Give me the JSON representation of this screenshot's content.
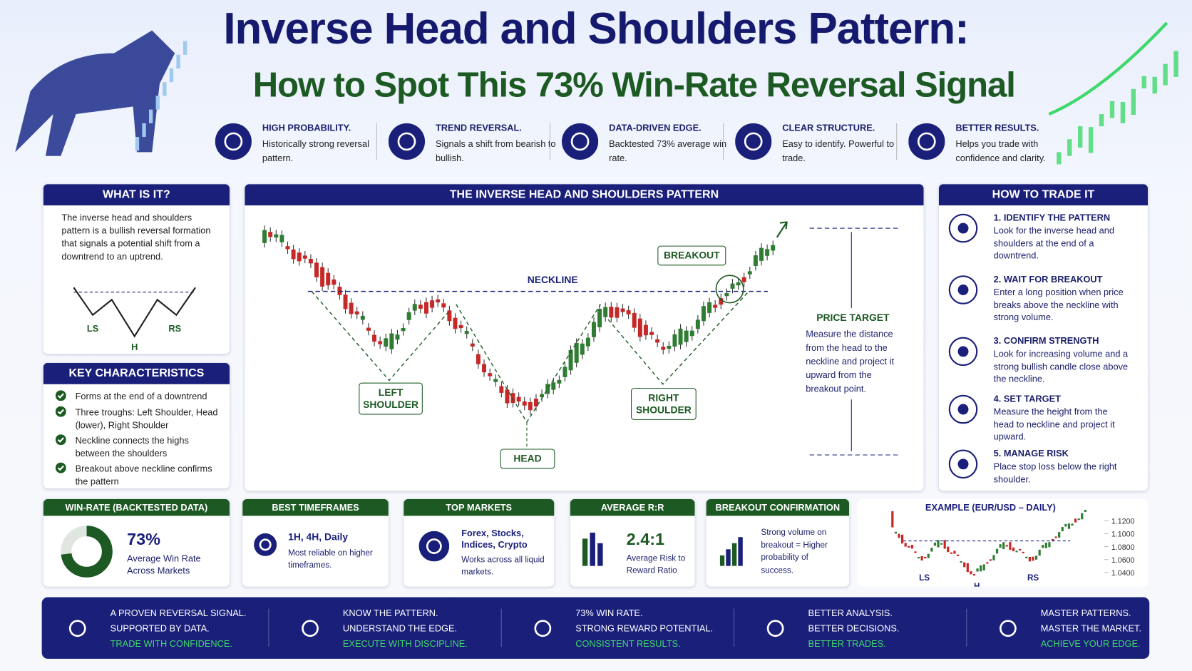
{
  "header": {
    "title": "Inverse Head and Shoulders Pattern:",
    "subtitle": "How to Spot This 73% Win-Rate Reversal Signal"
  },
  "features": [
    {
      "title": "HIGH PROBABILITY.",
      "text": "Historically strong reversal pattern."
    },
    {
      "title": "TREND REVERSAL.",
      "text": "Signals a shift from bearish to bullish."
    },
    {
      "title": "DATA-DRIVEN EDGE.",
      "text": "Backtested 73% average win rate."
    },
    {
      "title": "CLEAR STRUCTURE.",
      "text": "Easy to identify. Powerful to trade."
    },
    {
      "title": "BETTER RESULTS.",
      "text": "Helps you trade with confidence and clarity."
    }
  ],
  "what_is_it": {
    "heading": "WHAT IS IT?",
    "text": "The inverse head and shoulders pattern is a bullish reversal formation that signals a potential shift from a downtrend to an uptrend.",
    "ls": "LS",
    "h": "H",
    "rs": "RS"
  },
  "key_characteristics": {
    "heading": "KEY CHARACTERISTICS",
    "items": [
      "Forms at the end of a downtrend",
      "Three troughs: Left Shoulder, Head (lower), Right Shoulder",
      "Neckline connects the highs between the shoulders",
      "Breakout above neckline confirms the pattern"
    ]
  },
  "pattern": {
    "heading": "THE INVERSE HEAD AND SHOULDERS PATTERN",
    "neckline": "NECKLINE",
    "breakout": "BREAKOUT",
    "left_shoulder": "LEFT SHOULDER",
    "head": "HEAD",
    "right_shoulder": "RIGHT SHOULDER",
    "target_title": "PRICE TARGET",
    "target_text": "Measure the distance from the head to the neckline and project it upward from the breakout point."
  },
  "how_to_trade": {
    "heading": "HOW TO TRADE IT",
    "steps": [
      {
        "title": "1. IDENTIFY THE PATTERN",
        "text": "Look for the inverse head and shoulders at the end of a downtrend."
      },
      {
        "title": "2. WAIT FOR BREAKOUT",
        "text": "Enter a long position when price breaks above the neckline with strong volume."
      },
      {
        "title": "3. CONFIRM STRENGTH",
        "text": "Look for increasing volume and a strong bullish candle close above the neckline."
      },
      {
        "title": "4. SET TARGET",
        "text": "Measure the height from the head to neckline and project it upward."
      },
      {
        "title": "5. MANAGE RISK",
        "text": "Place stop loss below the right shoulder."
      }
    ]
  },
  "stats": {
    "win_rate": {
      "heading": "WIN-RATE (BACKTESTED DATA)",
      "value": 73,
      "label": "73%",
      "text": "Average Win Rate Across Markets"
    },
    "timeframes": {
      "heading": "BEST TIMEFRAMES",
      "value": "1H, 4H, Daily",
      "text": "Most reliable on higher timeframes."
    },
    "markets": {
      "heading": "TOP MARKETS",
      "value": "Forex, Stocks, Indices, Crypto",
      "text": "Works across all liquid markets."
    },
    "risk_reward": {
      "heading": "AVERAGE R:R",
      "value": "2.4:1",
      "text": "Average Risk to Reward Ratio"
    },
    "breakout": {
      "heading": "BREAKOUT CONFIRMATION",
      "text": "Strong volume on breakout = Higher probability of success."
    }
  },
  "example": {
    "title": "EXAMPLE (EUR/USD – DAILY)",
    "ylim": [
      1.03,
      1.13
    ],
    "yticks": [
      {
        "value": 1.12,
        "label": "1.1200"
      },
      {
        "value": 1.1,
        "label": "1.1000"
      },
      {
        "value": 1.08,
        "label": "1.0800"
      },
      {
        "value": 1.06,
        "label": "1.0600"
      },
      {
        "value": 1.04,
        "label": "1.0400"
      }
    ],
    "ls": "LS",
    "h": "H",
    "rs": "RS"
  },
  "footer": [
    [
      "A PROVEN REVERSAL SIGNAL.",
      "SUPPORTED BY DATA.",
      "TRADE WITH CONFIDENCE."
    ],
    [
      "KNOW THE PATTERN.",
      "UNDERSTAND THE EDGE.",
      "EXECUTE WITH DISCIPLINE."
    ],
    [
      "73% WIN RATE.",
      "STRONG REWARD POTENTIAL.",
      "CONSISTENT RESULTS."
    ],
    [
      "BETTER ANALYSIS.",
      "BETTER DECISIONS.",
      "BETTER TRADES."
    ],
    [
      "MASTER PATTERNS.",
      "MASTER THE MARKET.",
      "ACHIEVE YOUR EDGE."
    ]
  ]
}
